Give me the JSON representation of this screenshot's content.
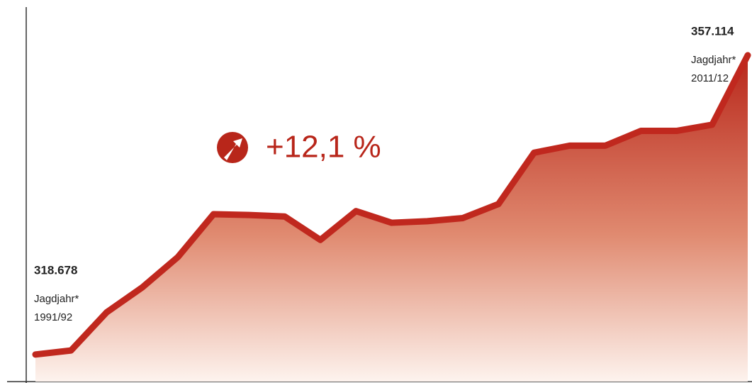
{
  "chart_data": {
    "type": "area",
    "change_label": "+12,1 %",
    "category_prefix": "Jagdjahr*",
    "categories": [
      "1991/92",
      null,
      null,
      null,
      null,
      null,
      null,
      null,
      null,
      null,
      null,
      null,
      null,
      null,
      null,
      null,
      null,
      null,
      null,
      null,
      "2011/12"
    ],
    "values": [
      318678,
      319200,
      324100,
      327300,
      331200,
      336700,
      336600,
      336400,
      333400,
      337100,
      335600,
      335800,
      336200,
      338000,
      344600,
      345500,
      345500,
      347400,
      347400,
      348200,
      357114
    ],
    "value_labels": [
      "318.678",
      null,
      null,
      null,
      null,
      null,
      null,
      null,
      null,
      null,
      null,
      null,
      null,
      null,
      null,
      null,
      null,
      null,
      null,
      null,
      "357.114"
    ],
    "color": "#c0281e",
    "ylim": [
      315200,
      363300
    ]
  }
}
